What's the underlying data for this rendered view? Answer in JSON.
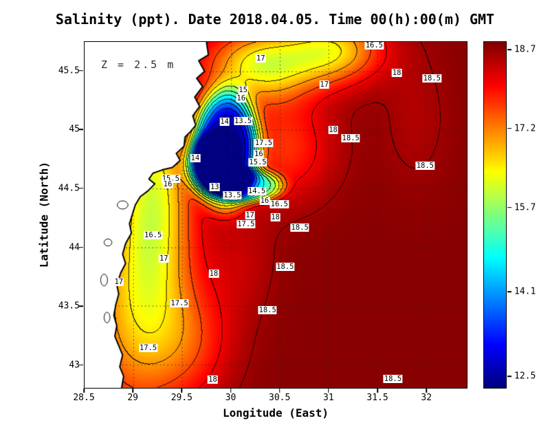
{
  "chart_data": {
    "type": "heatmap",
    "subtype": "filled-contour-map",
    "title": "Salinity (ppt). Date 2018.04.05. Time 00(h):00(m) GMT",
    "variable": "Salinity",
    "units": "ppt",
    "date": "2018.04.05",
    "time": "00(h):00(m) GMT",
    "depth_label": "Z = 2.5 m",
    "xlabel": "Longitude (East)",
    "ylabel": "Latitude (North)",
    "x_range": [
      28.5,
      32.42
    ],
    "y_range": [
      42.8,
      45.75
    ],
    "x_ticks": [
      28.5,
      29,
      29.5,
      30,
      30.5,
      31,
      31.5,
      32
    ],
    "y_ticks": [
      43,
      43.5,
      44,
      44.5,
      45,
      45.5
    ],
    "grid": "dotted",
    "contour_interval": 0.5,
    "colorbar": {
      "min": 12.5,
      "max": 18.7,
      "ticks": [
        18.7,
        17.2,
        15.7,
        14.1,
        12.5
      ],
      "colormap": "jet",
      "position": "right"
    },
    "contour_labels": [
      {
        "lon": 30.3,
        "lat": 45.61,
        "value": "17"
      },
      {
        "lon": 31.46,
        "lat": 45.72,
        "value": "16.5"
      },
      {
        "lon": 31.69,
        "lat": 45.49,
        "value": "18"
      },
      {
        "lon": 32.05,
        "lat": 45.44,
        "value": "18.5"
      },
      {
        "lon": 30.95,
        "lat": 45.39,
        "value": "17"
      },
      {
        "lon": 30.12,
        "lat": 45.34,
        "value": "15"
      },
      {
        "lon": 30.1,
        "lat": 45.27,
        "value": "16"
      },
      {
        "lon": 29.93,
        "lat": 45.07,
        "value": "14"
      },
      {
        "lon": 30.12,
        "lat": 45.08,
        "value": "13.5"
      },
      {
        "lon": 31.04,
        "lat": 45.0,
        "value": "18"
      },
      {
        "lon": 31.22,
        "lat": 44.93,
        "value": "18.5"
      },
      {
        "lon": 30.33,
        "lat": 44.89,
        "value": "17.5"
      },
      {
        "lon": 30.28,
        "lat": 44.8,
        "value": "16"
      },
      {
        "lon": 30.27,
        "lat": 44.73,
        "value": "15.5"
      },
      {
        "lon": 29.63,
        "lat": 44.76,
        "value": "14"
      },
      {
        "lon": 29.38,
        "lat": 44.59,
        "value": "15.5"
      },
      {
        "lon": 29.35,
        "lat": 44.54,
        "value": "16"
      },
      {
        "lon": 29.83,
        "lat": 44.52,
        "value": "13"
      },
      {
        "lon": 30.01,
        "lat": 44.45,
        "value": "13.5"
      },
      {
        "lon": 30.26,
        "lat": 44.48,
        "value": "14.5"
      },
      {
        "lon": 30.34,
        "lat": 44.4,
        "value": "16"
      },
      {
        "lon": 30.49,
        "lat": 44.37,
        "value": "16.5"
      },
      {
        "lon": 30.19,
        "lat": 44.28,
        "value": "17"
      },
      {
        "lon": 30.15,
        "lat": 44.2,
        "value": "17.5"
      },
      {
        "lon": 30.45,
        "lat": 44.26,
        "value": "18"
      },
      {
        "lon": 30.7,
        "lat": 44.17,
        "value": "18.5"
      },
      {
        "lon": 31.98,
        "lat": 44.7,
        "value": "18.5"
      },
      {
        "lon": 29.2,
        "lat": 44.11,
        "value": "16.5"
      },
      {
        "lon": 29.31,
        "lat": 43.91,
        "value": "17"
      },
      {
        "lon": 30.55,
        "lat": 43.84,
        "value": "18.5"
      },
      {
        "lon": 29.82,
        "lat": 43.78,
        "value": "18"
      },
      {
        "lon": 28.85,
        "lat": 43.71,
        "value": "17"
      },
      {
        "lon": 29.47,
        "lat": 43.53,
        "value": "17.5"
      },
      {
        "lon": 30.37,
        "lat": 43.47,
        "value": "18.5"
      },
      {
        "lon": 29.15,
        "lat": 43.15,
        "value": "17.5"
      },
      {
        "lon": 29.81,
        "lat": 42.88,
        "value": "18"
      },
      {
        "lon": 31.65,
        "lat": 42.89,
        "value": "18.5"
      }
    ],
    "field_model": {
      "base": 18.65,
      "blobs": [
        {
          "c": [
            29.95,
            44.85
          ],
          "sx": 0.33,
          "sy": 0.48,
          "amp": -5.8,
          "p": 2
        },
        {
          "c": [
            29.8,
            44.7
          ],
          "sx": 0.26,
          "sy": 0.25,
          "amp": -3.0,
          "p": 2
        },
        {
          "c": [
            30.2,
            44.52
          ],
          "sx": 0.33,
          "sy": 0.14,
          "amp": -3.0,
          "p": 2
        },
        {
          "c": [
            29.2,
            44.45
          ],
          "sx": 0.4,
          "sy": 0.95,
          "amp": -2.3,
          "p": 1
        },
        {
          "c": [
            29.0,
            43.35
          ],
          "sx": 0.55,
          "sy": 0.85,
          "amp": -1.5,
          "p": 1
        },
        {
          "c": [
            30.3,
            45.55
          ],
          "sx": 0.55,
          "sy": 0.3,
          "amp": -2.3,
          "p": 1
        },
        {
          "c": [
            31.05,
            45.68
          ],
          "sx": 0.5,
          "sy": 0.28,
          "amp": -2.0,
          "p": 1
        },
        {
          "c": [
            30.55,
            44.85
          ],
          "sx": 0.5,
          "sy": 0.45,
          "amp": -1.0,
          "p": 1
        },
        {
          "c": [
            30.1,
            43.9
          ],
          "sx": 0.35,
          "sy": 0.5,
          "amp": -0.35,
          "p": 1
        },
        {
          "c": [
            29.6,
            43.2
          ],
          "sx": 0.45,
          "sy": 0.5,
          "amp": -0.8,
          "p": 1
        },
        {
          "c": [
            31.9,
            45.1
          ],
          "sx": 0.35,
          "sy": 0.6,
          "amp": -0.25,
          "p": 1
        }
      ]
    },
    "land_polygon": [
      [
        28.5,
        45.75
      ],
      [
        29.75,
        45.75
      ],
      [
        29.77,
        45.64
      ],
      [
        29.67,
        45.59
      ],
      [
        29.73,
        45.5
      ],
      [
        29.65,
        45.44
      ],
      [
        29.71,
        45.37
      ],
      [
        29.63,
        45.28
      ],
      [
        29.68,
        45.2
      ],
      [
        29.61,
        45.12
      ],
      [
        29.64,
        45.04
      ],
      [
        29.58,
        44.98
      ],
      [
        29.53,
        44.94
      ],
      [
        29.52,
        44.86
      ],
      [
        29.44,
        44.8
      ],
      [
        29.48,
        44.74
      ],
      [
        29.4,
        44.68
      ],
      [
        29.3,
        44.66
      ],
      [
        29.2,
        44.63
      ],
      [
        29.16,
        44.58
      ],
      [
        29.22,
        44.54
      ],
      [
        29.15,
        44.48
      ],
      [
        29.07,
        44.43
      ],
      [
        29.02,
        44.36
      ],
      [
        28.99,
        44.28
      ],
      [
        28.96,
        44.2
      ],
      [
        28.98,
        44.12
      ],
      [
        28.92,
        44.03
      ],
      [
        28.89,
        43.94
      ],
      [
        28.92,
        43.86
      ],
      [
        28.87,
        43.78
      ],
      [
        28.83,
        43.68
      ],
      [
        28.85,
        43.6
      ],
      [
        28.82,
        43.51
      ],
      [
        28.8,
        43.42
      ],
      [
        28.83,
        43.33
      ],
      [
        28.81,
        43.24
      ],
      [
        28.85,
        43.16
      ],
      [
        28.89,
        43.08
      ],
      [
        28.86,
        42.98
      ],
      [
        28.9,
        42.9
      ],
      [
        28.88,
        42.8
      ],
      [
        28.5,
        42.8
      ]
    ],
    "lakes": [
      {
        "lon": 28.89,
        "lat": 44.36,
        "rx": 0.055,
        "ry": 0.035
      },
      {
        "lon": 28.74,
        "lat": 44.04,
        "rx": 0.04,
        "ry": 0.03
      },
      {
        "lon": 28.7,
        "lat": 43.72,
        "rx": 0.035,
        "ry": 0.05
      },
      {
        "lon": 28.73,
        "lat": 43.4,
        "rx": 0.03,
        "ry": 0.045
      }
    ],
    "colors": {
      "land": "#ffffff",
      "coastline": "#000000",
      "frame": "#000000"
    }
  }
}
